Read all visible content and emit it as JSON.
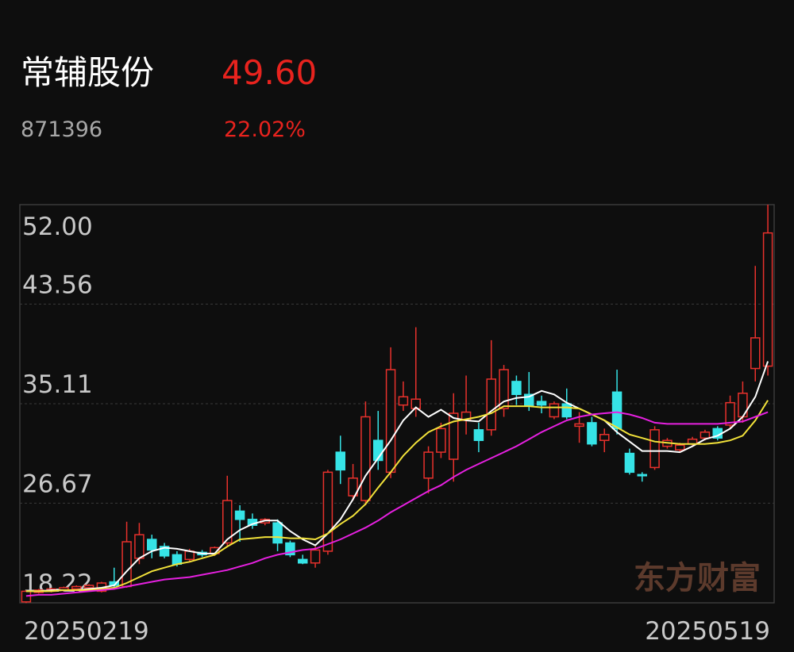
{
  "header": {
    "name": "常辅股份",
    "price": "49.60",
    "code": "871396",
    "change": "22.02%"
  },
  "watermark": "东方财富",
  "chart_data": {
    "type": "candlestick",
    "x": [
      "20250219",
      null,
      null,
      null,
      null,
      null,
      null,
      null,
      null,
      null,
      null,
      null,
      null,
      null,
      null,
      null,
      null,
      null,
      null,
      null,
      null,
      null,
      null,
      null,
      null,
      null,
      null,
      null,
      null,
      null,
      null,
      null,
      null,
      null,
      null,
      null,
      null,
      null,
      null,
      null,
      null,
      null,
      null,
      null,
      null,
      null,
      null,
      null,
      null,
      null,
      null,
      null,
      null,
      null,
      null,
      null,
      null,
      null,
      null,
      "20250519"
    ],
    "ylim": [
      18.22,
      52.0
    ],
    "yticks": [
      18.22,
      26.67,
      35.11,
      43.56,
      {
        "value": 52.0,
        "label": "52.00"
      }
    ],
    "grid": true,
    "up_color": "#e8312c",
    "down_color": "#36e3e6",
    "open": [
      18.3,
      19.1,
      19.2,
      19.3,
      19.4,
      19.5,
      19.2,
      20.0,
      19.6,
      22.0,
      23.6,
      23.0,
      22.3,
      21.9,
      22.5,
      22.4,
      23.3,
      26.0,
      25.3,
      25.0,
      25.0,
      23.3,
      21.9,
      21.6,
      22.6,
      31.0,
      27.3,
      26.9,
      32.0,
      29.3,
      35.0,
      34.7,
      28.8,
      31.0,
      30.4,
      33.7,
      32.9,
      32.9,
      34.7,
      37.0,
      35.9,
      35.3,
      34.0,
      35.1,
      33.2,
      33.5,
      32.0,
      36.1,
      30.9,
      29.1,
      29.7,
      31.5,
      31.2,
      31.7,
      32.2,
      33.0,
      33.3,
      34.0,
      38.1,
      38.3
    ],
    "high": [
      19.3,
      19.4,
      19.5,
      19.6,
      19.7,
      19.8,
      20.0,
      21.2,
      25.1,
      25.0,
      24.0,
      23.3,
      22.6,
      22.8,
      22.7,
      23.0,
      29.0,
      26.5,
      25.8,
      25.4,
      25.3,
      23.5,
      22.3,
      23.0,
      29.5,
      32.4,
      30.0,
      35.3,
      34.5,
      39.9,
      37.0,
      41.6,
      31.5,
      33.5,
      36.0,
      37.5,
      33.5,
      40.5,
      38.4,
      37.5,
      37.8,
      35.8,
      35.3,
      36.4,
      34.4,
      34.0,
      33.0,
      38.0,
      31.3,
      29.3,
      33.2,
      32.2,
      31.8,
      32.3,
      32.9,
      33.2,
      35.8,
      37.0,
      46.8,
      52.0
    ],
    "low": [
      18.2,
      19.0,
      19.1,
      19.2,
      19.3,
      19.4,
      19.1,
      19.5,
      19.5,
      21.5,
      22.0,
      22.0,
      21.3,
      21.7,
      22.1,
      22.2,
      23.0,
      23.4,
      24.5,
      24.8,
      22.6,
      22.1,
      21.5,
      21.2,
      22.3,
      28.3,
      26.9,
      26.5,
      29.5,
      28.8,
      34.5,
      34.0,
      27.5,
      30.5,
      28.5,
      32.5,
      31.0,
      32.4,
      34.0,
      35.0,
      34.5,
      34.3,
      33.8,
      33.8,
      31.8,
      31.5,
      31.0,
      32.5,
      29.1,
      28.5,
      29.5,
      31.3,
      31.0,
      31.5,
      32.0,
      32.0,
      33.0,
      33.5,
      37.0,
      37.5
    ],
    "close": [
      19.2,
      19.3,
      19.4,
      19.5,
      19.6,
      19.7,
      19.9,
      19.7,
      23.4,
      24.0,
      22.7,
      22.2,
      21.5,
      22.6,
      22.3,
      22.9,
      26.9,
      25.3,
      24.8,
      25.3,
      23.3,
      22.3,
      21.6,
      22.7,
      29.3,
      29.5,
      28.8,
      34.0,
      30.3,
      38.0,
      35.7,
      35.5,
      31.0,
      33.0,
      34.3,
      34.4,
      32.0,
      37.2,
      38.0,
      35.9,
      34.9,
      35.0,
      35.1,
      34.0,
      33.4,
      31.7,
      32.5,
      33.0,
      29.3,
      29.0,
      32.9,
      32.0,
      31.6,
      32.1,
      32.7,
      32.2,
      35.2,
      36.0,
      40.7,
      49.6
    ],
    "lines": [
      {
        "color": "#ffffff",
        "values": [
          19.2,
          19.2,
          19.3,
          19.3,
          19.3,
          19.4,
          19.5,
          19.7,
          20.9,
          22.0,
          22.6,
          22.9,
          22.8,
          22.6,
          22.4,
          22.4,
          23.6,
          24.4,
          24.9,
          25.2,
          25.2,
          24.3,
          23.6,
          23.1,
          24.1,
          25.3,
          27.0,
          29.0,
          30.5,
          32.0,
          33.7,
          34.8,
          34.0,
          34.6,
          33.9,
          33.7,
          33.6,
          34.5,
          35.3,
          35.6,
          35.7,
          36.2,
          35.9,
          35.2,
          34.7,
          34.2,
          33.7,
          32.7,
          31.9,
          31.1,
          31.1,
          31.1,
          31.0,
          31.5,
          32.1,
          32.4,
          33.0,
          34.0,
          35.7,
          38.7
        ]
      },
      {
        "color": "#f2e23a",
        "values": [
          19.2,
          19.2,
          19.2,
          19.3,
          19.3,
          19.3,
          19.4,
          19.5,
          19.9,
          20.4,
          20.9,
          21.2,
          21.5,
          21.7,
          22.0,
          22.3,
          23.0,
          23.6,
          23.7,
          23.8,
          23.8,
          23.7,
          23.7,
          23.6,
          24.1,
          24.9,
          25.6,
          26.6,
          28.0,
          29.3,
          30.7,
          31.8,
          32.7,
          33.2,
          33.6,
          33.8,
          34.0,
          34.3,
          34.9,
          34.9,
          34.9,
          34.8,
          34.8,
          34.8,
          34.7,
          34.2,
          33.7,
          33.1,
          32.5,
          32.2,
          31.9,
          31.8,
          31.7,
          31.7,
          31.7,
          31.8,
          32.0,
          32.4,
          33.7,
          35.4
        ]
      },
      {
        "color": "#e620e0",
        "values": [
          18.8,
          18.9,
          18.9,
          19.0,
          19.1,
          19.2,
          19.3,
          19.4,
          19.6,
          19.8,
          20.0,
          20.2,
          20.3,
          20.4,
          20.6,
          20.8,
          21.0,
          21.3,
          21.6,
          22.0,
          22.3,
          22.5,
          22.7,
          22.8,
          23.2,
          23.6,
          24.1,
          24.6,
          25.2,
          25.9,
          26.5,
          27.1,
          27.7,
          28.2,
          28.9,
          29.5,
          30.0,
          30.5,
          31.0,
          31.5,
          32.1,
          32.7,
          33.2,
          33.7,
          34.0,
          34.2,
          34.3,
          34.4,
          34.2,
          33.9,
          33.5,
          33.4,
          33.4,
          33.4,
          33.4,
          33.4,
          33.5,
          33.6,
          34.0,
          34.4
        ]
      }
    ]
  }
}
